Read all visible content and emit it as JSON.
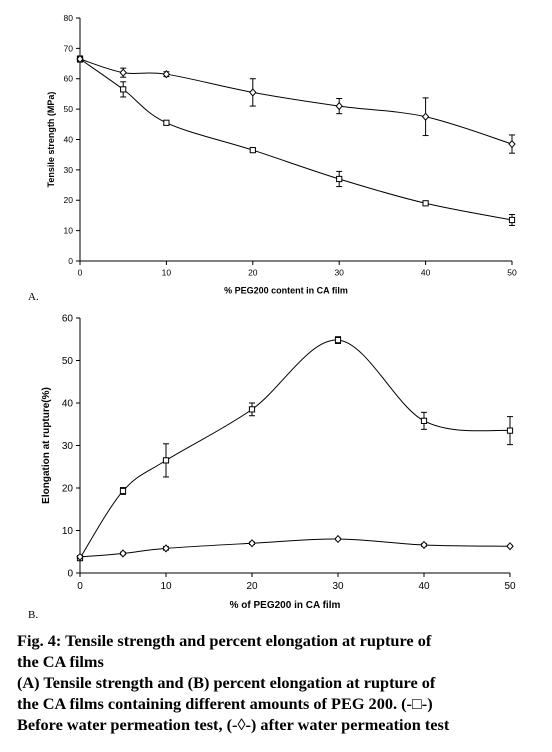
{
  "chart_data": [
    {
      "type": "line",
      "panel": "A.",
      "xlabel": "% PEG200 content in CA film",
      "ylabel": "Tensile strength (MPa)",
      "xlim": [
        0,
        50
      ],
      "ylim": [
        0,
        80
      ],
      "xticks": [
        "0",
        "10",
        "20",
        "30",
        "40",
        "50"
      ],
      "yticks": [
        "0",
        "10",
        "20",
        "30",
        "40",
        "50",
        "60",
        "70",
        "80"
      ],
      "grid": false,
      "series": [
        {
          "marker": "square",
          "x": [
            0,
            5,
            10,
            20,
            30,
            40,
            50
          ],
          "y": [
            66.5,
            56.5,
            45.5,
            36.5,
            27,
            19,
            13.5
          ],
          "err": [
            1,
            2.5,
            0.6,
            0.4,
            2.5,
            0.4,
            1.8
          ]
        },
        {
          "marker": "diamond",
          "x": [
            0,
            5,
            10,
            20,
            30,
            40,
            50
          ],
          "y": [
            66.5,
            62,
            61.5,
            55.5,
            51,
            47.5,
            38.5
          ],
          "err": [
            1,
            1.5,
            0.8,
            4.5,
            2.5,
            6.2,
            3
          ]
        }
      ]
    },
    {
      "type": "line",
      "panel": "B.",
      "xlabel": "% of PEG200 in CA film",
      "ylabel": "Elongation at rupture(%)",
      "xlim": [
        0,
        50
      ],
      "ylim": [
        0,
        60
      ],
      "xticks": [
        "0",
        "10",
        "20",
        "30",
        "40",
        "50"
      ],
      "yticks": [
        "0",
        "10",
        "20",
        "30",
        "40",
        "50",
        "60"
      ],
      "grid": false,
      "series": [
        {
          "marker": "square",
          "x": [
            0,
            5,
            10,
            20,
            30,
            40,
            50
          ],
          "y": [
            3.5,
            19.3,
            26.5,
            38.5,
            54.8,
            35.8,
            33.5
          ],
          "err": [
            0.5,
            0.8,
            3.9,
            1.5,
            0.8,
            2,
            3.3
          ]
        },
        {
          "marker": "diamond",
          "x": [
            0,
            5,
            10,
            20,
            30,
            40,
            50
          ],
          "y": [
            3.8,
            4.6,
            5.8,
            7,
            8,
            6.6,
            6.3
          ],
          "err": [
            0.3,
            0.3,
            0.4,
            0.3,
            0.2,
            0.3,
            0.2
          ]
        }
      ]
    }
  ],
  "caption": {
    "line1": "Fig. 4: Tensile strength and percent elongation at rupture of",
    "line2": "the CA films",
    "line3": "(A) Tensile strength and (B) percent elongation at rupture of",
    "line4": "the CA films containing different amounts of PEG 200. (-□-)",
    "line5": "Before water permeation test, (-◊-) after water permeation test"
  }
}
